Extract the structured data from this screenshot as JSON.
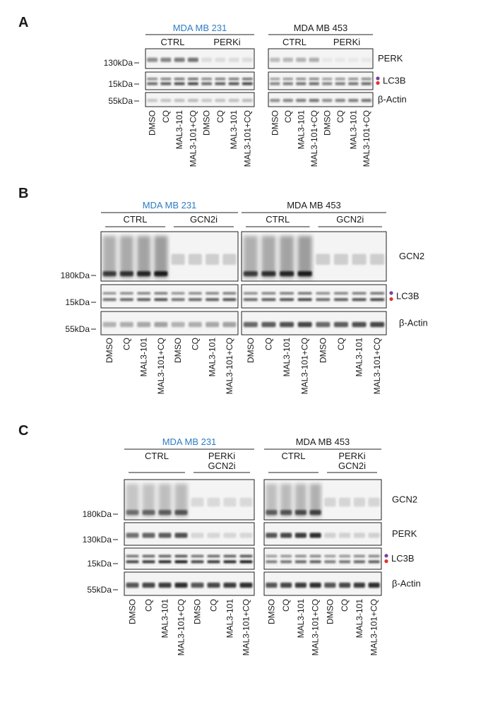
{
  "colors": {
    "blue_title": "#2e7cc2",
    "marker_upper": "#7b3fa0",
    "marker_lower": "#e0322e"
  },
  "panels": [
    {
      "letter": "A",
      "cells": [
        {
          "title": "MDA MB 231",
          "title_color": "blue",
          "groups": [
            "CTRL",
            "PERKi"
          ]
        },
        {
          "title": "MDA MB 453",
          "title_color": "black",
          "groups": [
            "CTRL",
            "PERKi"
          ]
        }
      ],
      "rows": [
        {
          "protein": "PERK",
          "mw": "130kDa",
          "markers": false,
          "intensity": [
            0.55,
            0.3
          ]
        },
        {
          "protein": "LC3B",
          "mw": "15kDa",
          "markers": true,
          "intensity": [
            0.75,
            0.6
          ]
        },
        {
          "protein": "β-Actin",
          "mw": "55kDa",
          "markers": false,
          "intensity": [
            0.25,
            0.55
          ]
        }
      ],
      "lanes": [
        "DMSO",
        "CQ",
        "MAL3-101",
        "MAL3-101+CQ",
        "DMSO",
        "CQ",
        "MAL3-101",
        "MAL3-101+CQ"
      ]
    },
    {
      "letter": "B",
      "cells": [
        {
          "title": "MDA MB 231",
          "title_color": "blue",
          "groups": [
            "CTRL",
            "GCN2i"
          ]
        },
        {
          "title": "MDA MB 453",
          "title_color": "black",
          "groups": [
            "CTRL",
            "GCN2i"
          ]
        }
      ],
      "rows": [
        {
          "protein": "GCN2",
          "mw": "180kDa",
          "markers": false,
          "intensity": [
            0.9,
            0.9
          ]
        },
        {
          "protein": "LC3B",
          "mw": "15kDa",
          "markers": true,
          "intensity": [
            0.7,
            0.75
          ]
        },
        {
          "protein": "β-Actin",
          "mw": "55kDa",
          "markers": false,
          "intensity": [
            0.35,
            0.75
          ]
        }
      ],
      "lanes": [
        "DMSO",
        "CQ",
        "MAL3-101",
        "MAL3-101+CQ",
        "DMSO",
        "CQ",
        "MAL3-101",
        "MAL3-101+CQ"
      ]
    },
    {
      "letter": "C",
      "cells": [
        {
          "title": "MDA MB 231",
          "title_color": "blue",
          "groups": [
            "CTRL",
            "PERKi\nGCN2i"
          ]
        },
        {
          "title": "MDA MB 453",
          "title_color": "black",
          "groups": [
            "CTRL",
            "PERKi\nGCN2i"
          ]
        }
      ],
      "rows": [
        {
          "protein": "GCN2",
          "mw": "180kDa",
          "markers": false,
          "intensity": [
            0.6,
            0.7
          ]
        },
        {
          "protein": "PERK",
          "mw": "130kDa",
          "markers": false,
          "intensity": [
            0.7,
            0.85
          ]
        },
        {
          "protein": "LC3B",
          "mw": "15kDa",
          "markers": true,
          "intensity": [
            0.95,
            0.65
          ]
        },
        {
          "protein": "β-Actin",
          "mw": "55kDa",
          "markers": false,
          "intensity": [
            0.85,
            0.85
          ]
        }
      ],
      "lanes": [
        "DMSO",
        "CQ",
        "MAL3-101",
        "MAL3-101+CQ",
        "DMSO",
        "CQ",
        "MAL3-101",
        "MAL3-101+CQ"
      ]
    }
  ]
}
